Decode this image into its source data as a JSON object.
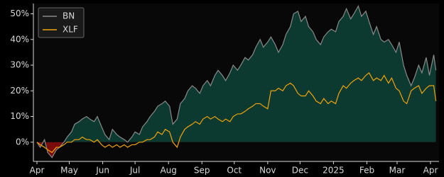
{
  "chart_data": {
    "type": "line",
    "x": [
      0,
      3,
      7,
      10,
      14,
      18,
      21,
      25,
      28,
      32,
      35,
      39,
      42,
      46,
      49,
      53,
      56,
      60,
      63,
      67,
      70,
      74,
      77,
      81,
      84,
      88,
      91,
      95,
      98,
      102,
      105,
      109,
      112,
      116,
      119,
      123,
      126,
      130,
      133,
      137,
      140,
      144,
      147,
      151,
      154,
      158,
      161,
      165,
      168,
      172,
      175,
      179,
      182,
      186,
      189,
      193,
      196,
      200,
      203,
      207,
      210,
      214,
      217,
      221,
      224,
      228,
      231,
      235,
      238,
      242,
      245,
      249,
      252,
      256,
      259,
      263,
      266,
      270,
      273,
      277,
      280,
      284,
      287,
      291,
      294,
      298,
      301,
      305,
      308,
      312,
      315,
      319,
      322,
      326,
      329,
      333,
      336,
      340,
      343,
      347,
      350,
      354,
      357,
      361,
      364,
      368,
      370
    ],
    "series": [
      {
        "name": "BN",
        "color": "#8a8a8a",
        "fill_positive": "#0d3a30",
        "fill_negative": "#7a0c0c",
        "values": [
          0,
          -2,
          1,
          -4,
          -6,
          -3,
          -2,
          0,
          2,
          4,
          7,
          8,
          9,
          10,
          9,
          8,
          10,
          6,
          3,
          1,
          5,
          3,
          2,
          1,
          0,
          2,
          4,
          3,
          6,
          8,
          10,
          12,
          14,
          15,
          16,
          14,
          7,
          9,
          15,
          17,
          20,
          22,
          21,
          19,
          22,
          24,
          22,
          26,
          28,
          26,
          24,
          27,
          30,
          28,
          30,
          33,
          32,
          34,
          37,
          40,
          37,
          39,
          41,
          38,
          35,
          38,
          42,
          45,
          50,
          51,
          47,
          49,
          45,
          43,
          40,
          38,
          41,
          43,
          44,
          43,
          47,
          49,
          52,
          48,
          50,
          53,
          49,
          51,
          47,
          42,
          45,
          40,
          39,
          40,
          38,
          35,
          39,
          30,
          26,
          22,
          25,
          30,
          27,
          33,
          26,
          34,
          28
        ]
      },
      {
        "name": "XLF",
        "color": "#f0a30a",
        "values": [
          0,
          -1,
          -2,
          -3,
          -4,
          -2,
          -2,
          -1,
          0,
          0,
          1,
          1,
          2,
          1,
          1,
          0,
          1,
          -1,
          -2,
          -1,
          -2,
          -1,
          -2,
          -1,
          -2,
          -1,
          -1,
          0,
          0,
          1,
          1,
          2,
          4,
          3,
          5,
          4,
          0,
          -2,
          2,
          5,
          6,
          7,
          8,
          7,
          9,
          10,
          9,
          10,
          9,
          8,
          9,
          8,
          10,
          11,
          11,
          12,
          13,
          14,
          15,
          15,
          14,
          13,
          20,
          20,
          21,
          20,
          22,
          23,
          22,
          19,
          18,
          18,
          20,
          18,
          16,
          15,
          17,
          15,
          16,
          15,
          19,
          22,
          21,
          23,
          24,
          25,
          24,
          26,
          27,
          24,
          25,
          24,
          26,
          23,
          25,
          21,
          20,
          16,
          15,
          20,
          21,
          22,
          19,
          21,
          22,
          22,
          16
        ]
      }
    ],
    "xlim": [
      -3.3,
      372.9
    ],
    "xticks": [
      {
        "value": 0,
        "label": "Apr"
      },
      {
        "value": 30,
        "label": "May"
      },
      {
        "value": 61,
        "label": "Jun"
      },
      {
        "value": 91,
        "label": "Jul"
      },
      {
        "value": 122,
        "label": "Aug"
      },
      {
        "value": 153,
        "label": "Sep"
      },
      {
        "value": 183,
        "label": "Oct"
      },
      {
        "value": 214,
        "label": "Nov"
      },
      {
        "value": 244,
        "label": "Dec"
      },
      {
        "value": 275,
        "label": "2025"
      },
      {
        "value": 306,
        "label": "Feb"
      },
      {
        "value": 334,
        "label": "Mar"
      },
      {
        "value": 365,
        "label": "Apr"
      }
    ],
    "ylim": [
      -7.5,
      54
    ],
    "yticks": [
      {
        "value": 0,
        "label": "0%"
      },
      {
        "value": 10,
        "label": "10%"
      },
      {
        "value": 20,
        "label": "20%"
      },
      {
        "value": 30,
        "label": "30%"
      },
      {
        "value": 40,
        "label": "40%"
      },
      {
        "value": 50,
        "label": "50%"
      }
    ],
    "legend": "upper left"
  }
}
